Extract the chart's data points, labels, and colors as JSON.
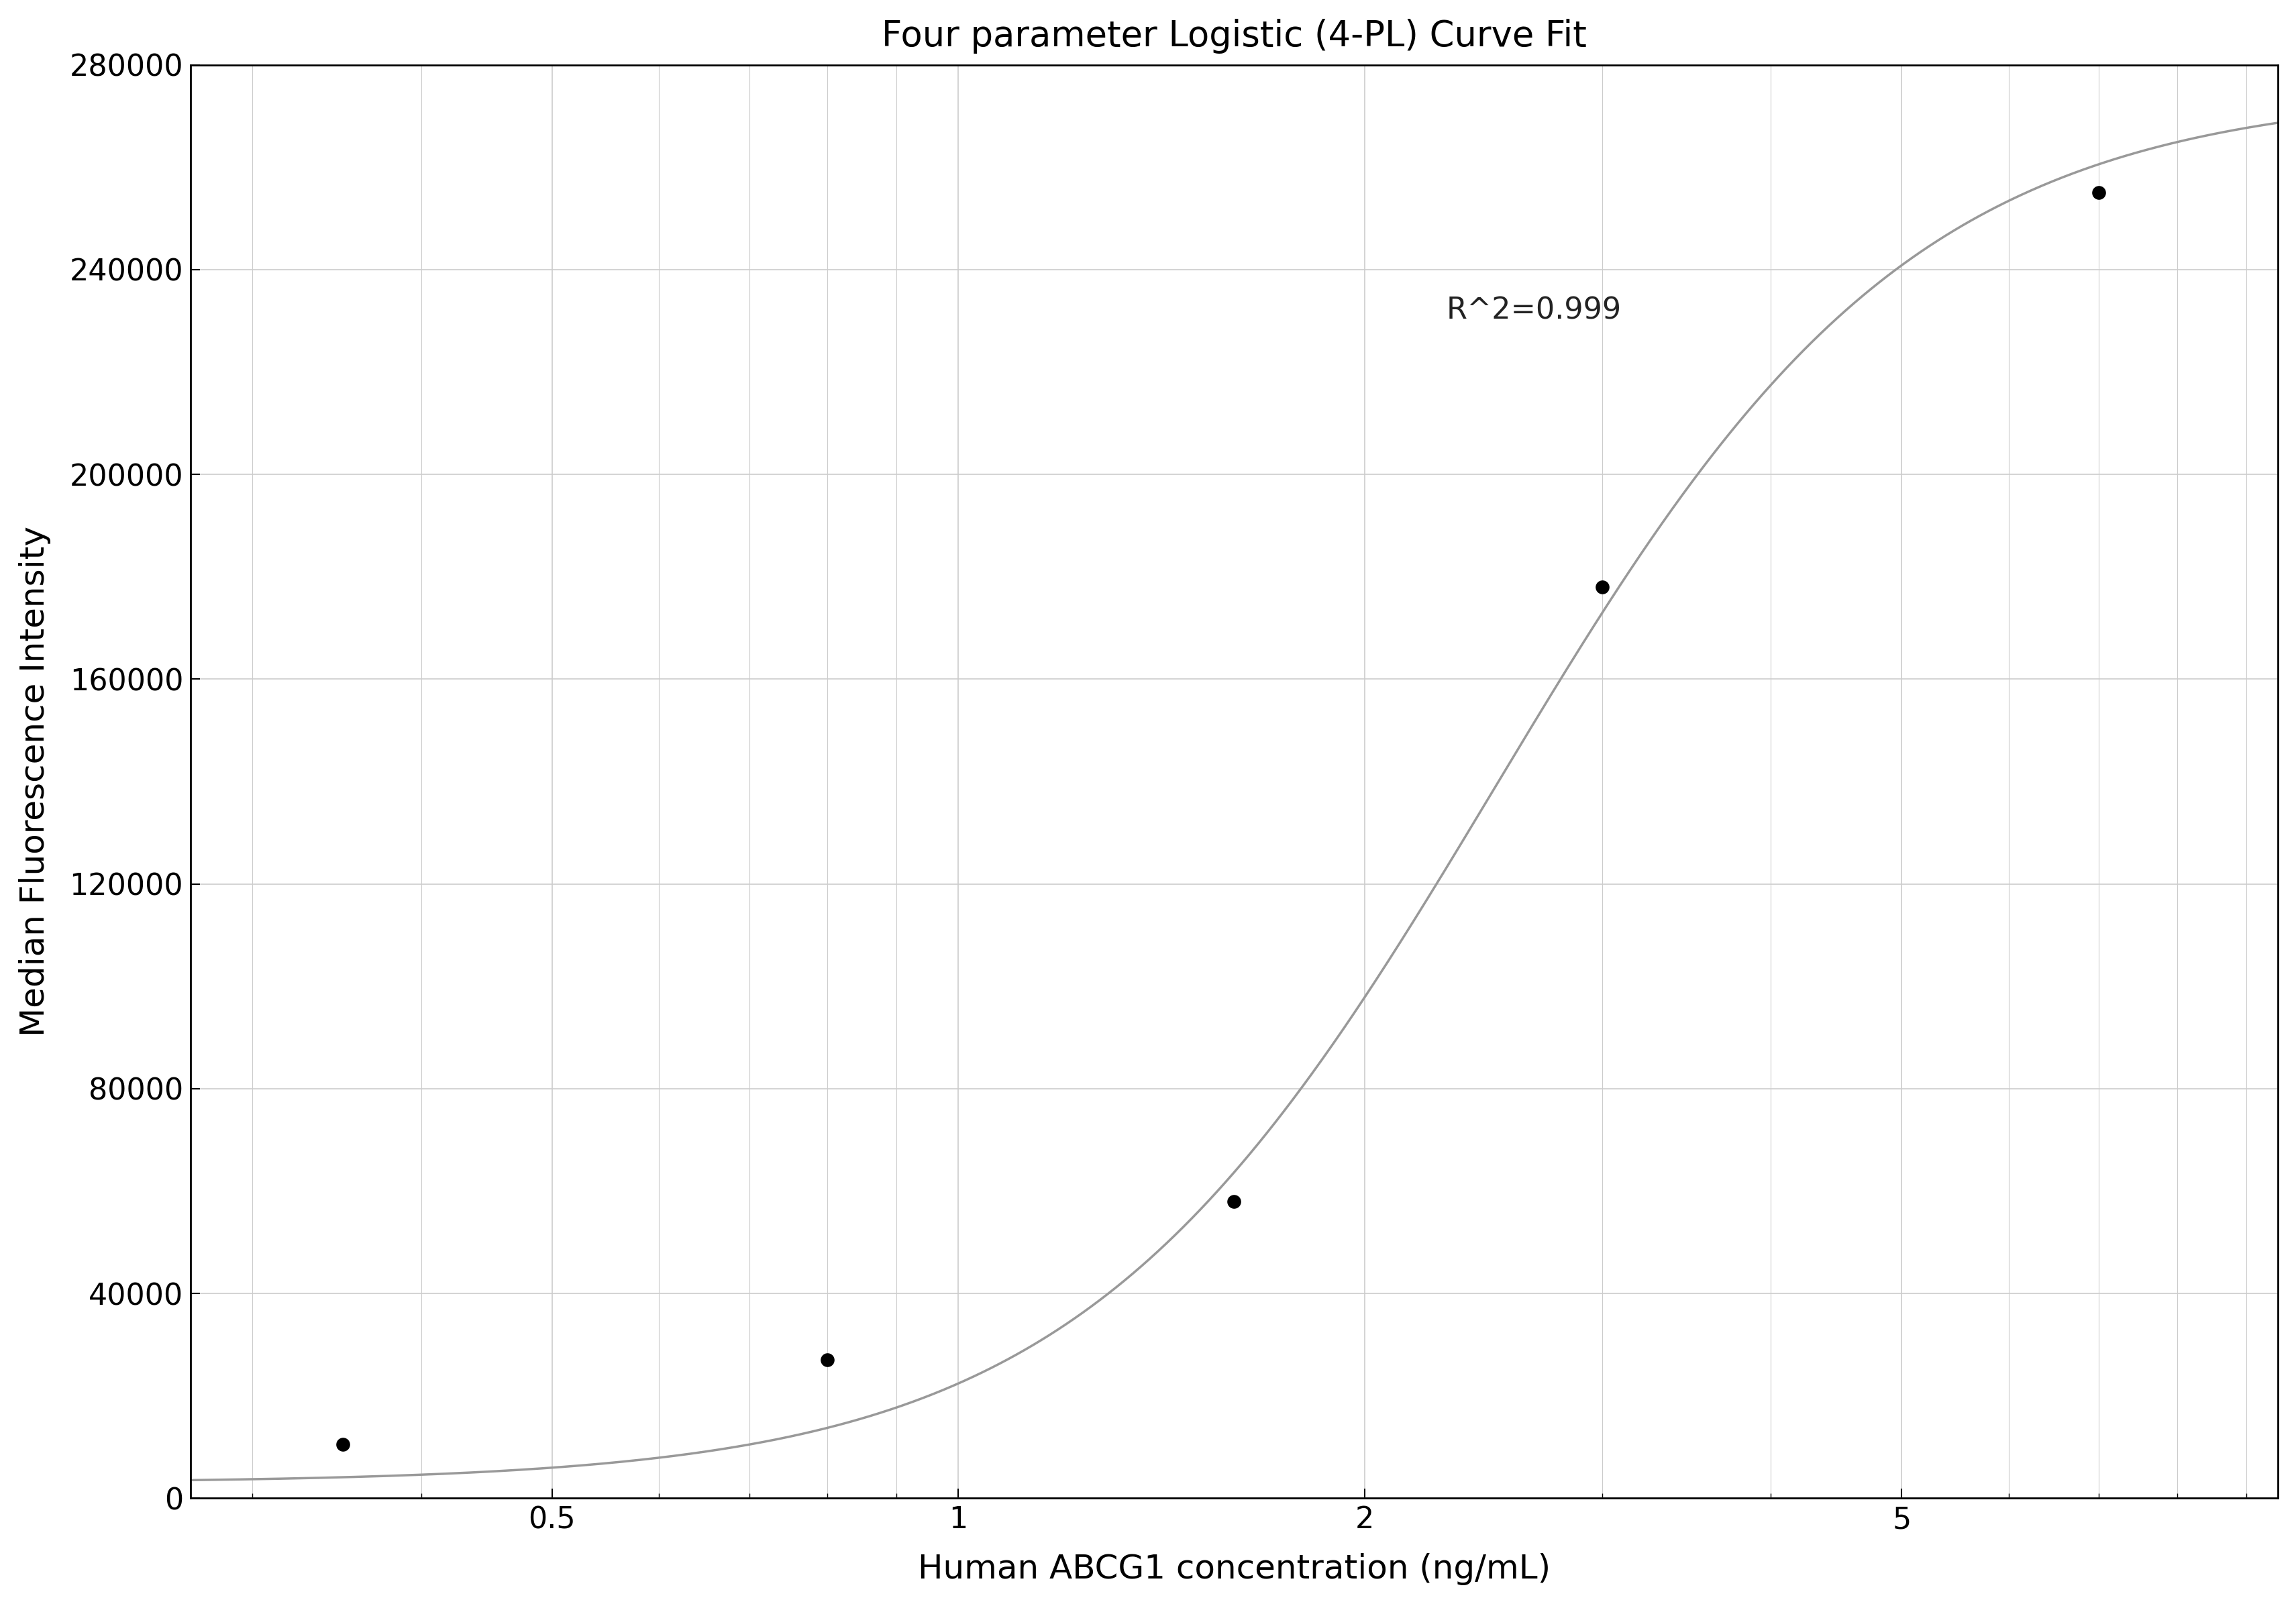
{
  "title": "Four parameter Logistic (4-PL) Curve Fit",
  "xlabel": "Human ABCG1 concentration (ng/mL)",
  "ylabel": "Median Fluorescence Intensity",
  "data_x": [
    0.35,
    0.8,
    1.6,
    3.0,
    7.0
  ],
  "data_y": [
    10500,
    27000,
    58000,
    178000,
    255000
  ],
  "r2_text": "R^2=0.999",
  "r2_x": 2.3,
  "r2_y": 232000,
  "ylim": [
    0,
    280000
  ],
  "xlim_log": [
    0.27,
    9.5
  ],
  "yticks": [
    0,
    40000,
    80000,
    120000,
    160000,
    200000,
    240000,
    280000
  ],
  "xticks_major": [
    0.5,
    1,
    2,
    5
  ],
  "xticks_minor": [
    0.3,
    0.4,
    0.6,
    0.7,
    0.8,
    0.9,
    3,
    4,
    6,
    7,
    8,
    9
  ],
  "curve_color": "#999999",
  "dot_color": "#000000",
  "dot_size": 220,
  "grid_color": "#cccccc",
  "background_color": "#ffffff",
  "title_fontsize": 38,
  "label_fontsize": 36,
  "tick_fontsize": 32,
  "annotation_fontsize": 32,
  "4pl_A": 3000,
  "4pl_B": 2.8,
  "4pl_C": 2.5,
  "4pl_D": 275000
}
